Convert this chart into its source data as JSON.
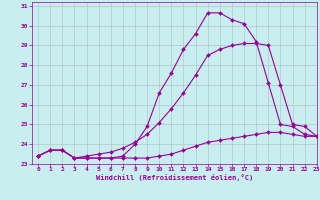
{
  "xlabel": "Windchill (Refroidissement éolien,°C)",
  "background_color": "#c8eef0",
  "grid_color": "#b0c8c8",
  "line_color": "#990099",
  "xlim": [
    -0.5,
    23
  ],
  "ylim": [
    23,
    31.2
  ],
  "yticks": [
    23,
    24,
    25,
    26,
    27,
    28,
    29,
    30,
    31
  ],
  "xticks": [
    0,
    1,
    2,
    3,
    4,
    5,
    6,
    7,
    8,
    9,
    10,
    11,
    12,
    13,
    14,
    15,
    16,
    17,
    18,
    19,
    20,
    21,
    22,
    23
  ],
  "series": [
    {
      "x": [
        0,
        1,
        2,
        3,
        4,
        5,
        6,
        7,
        8,
        9,
        10,
        11,
        12,
        13,
        14,
        15,
        16,
        17,
        18,
        19,
        20,
        21,
        22,
        23
      ],
      "y": [
        23.4,
        23.7,
        23.7,
        23.3,
        23.3,
        23.3,
        23.3,
        23.3,
        23.3,
        23.3,
        23.4,
        23.5,
        23.7,
        23.9,
        24.1,
        24.2,
        24.3,
        24.4,
        24.5,
        24.6,
        24.6,
        24.5,
        24.4,
        24.4
      ]
    },
    {
      "x": [
        0,
        1,
        2,
        3,
        4,
        5,
        6,
        7,
        8,
        9,
        10,
        11,
        12,
        13,
        14,
        15,
        16,
        17,
        18,
        19,
        20,
        21,
        22,
        23
      ],
      "y": [
        23.4,
        23.7,
        23.7,
        23.3,
        23.3,
        23.3,
        23.3,
        23.4,
        24.0,
        24.9,
        26.6,
        27.6,
        28.8,
        29.6,
        30.65,
        30.65,
        30.3,
        30.1,
        29.2,
        27.1,
        25.0,
        24.9,
        24.5,
        24.4
      ]
    },
    {
      "x": [
        0,
        1,
        2,
        3,
        4,
        5,
        6,
        7,
        8,
        9,
        10,
        11,
        12,
        13,
        14,
        15,
        16,
        17,
        18,
        19,
        20,
        21,
        22,
        23
      ],
      "y": [
        23.4,
        23.7,
        23.7,
        23.3,
        23.4,
        23.5,
        23.6,
        23.8,
        24.1,
        24.5,
        25.1,
        25.8,
        26.6,
        27.5,
        28.5,
        28.8,
        29.0,
        29.1,
        29.1,
        29.0,
        27.0,
        25.0,
        24.9,
        24.4
      ]
    }
  ]
}
